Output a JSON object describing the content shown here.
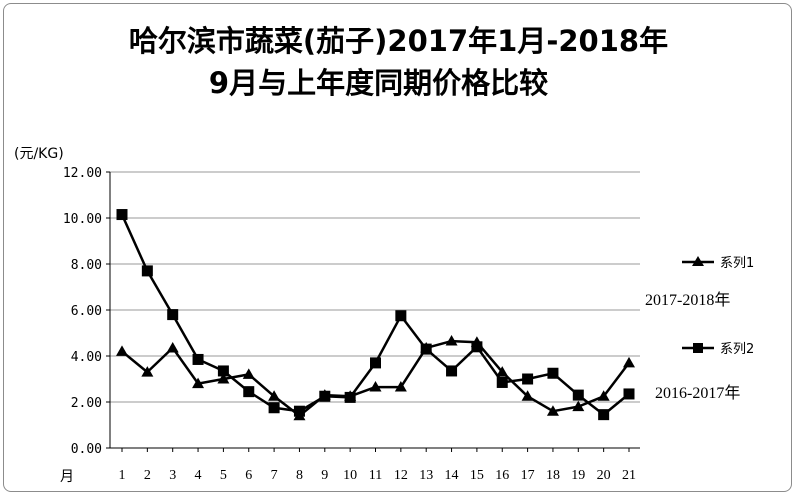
{
  "chart_data": {
    "type": "line",
    "title": "哈尔滨市蔬菜(茄子)2017年1月-2018年",
    "subtitle": "9月与上年度同期价格比较",
    "ylabel": "(元/KG)",
    "xlabel": "月",
    "ylim": [
      0,
      12
    ],
    "yticks": [
      "0.00",
      "2.00",
      "4.00",
      "6.00",
      "8.00",
      "10.00",
      "12.00"
    ],
    "grid": true,
    "legend_position": "right",
    "categories": [
      "1",
      "2",
      "3",
      "4",
      "5",
      "6",
      "7",
      "8",
      "9",
      "10",
      "11",
      "12",
      "13",
      "14",
      "15",
      "16",
      "17",
      "18",
      "19",
      "20",
      "21"
    ],
    "series": [
      {
        "name": "系列1",
        "note": "2017-2018年",
        "marker": "triangle",
        "values": [
          4.2,
          3.3,
          4.35,
          2.8,
          3.0,
          3.2,
          2.25,
          1.4,
          2.3,
          2.25,
          2.65,
          2.65,
          4.35,
          4.65,
          4.6,
          3.3,
          2.25,
          1.6,
          1.8,
          2.25,
          3.7
        ]
      },
      {
        "name": "系列2",
        "note": "2016-2017年",
        "marker": "square",
        "values": [
          10.15,
          7.7,
          5.8,
          3.85,
          3.35,
          2.45,
          1.75,
          1.6,
          2.25,
          2.2,
          3.7,
          5.75,
          4.3,
          3.35,
          4.4,
          2.85,
          3.0,
          3.25,
          2.3,
          1.45,
          2.35
        ]
      }
    ]
  }
}
